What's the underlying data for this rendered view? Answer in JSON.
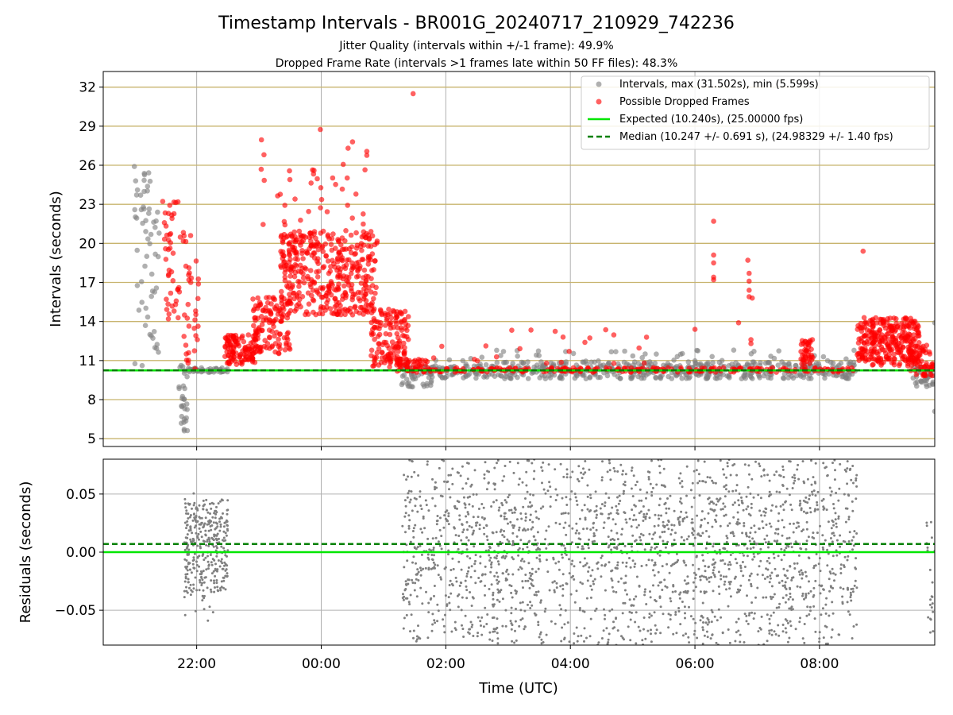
{
  "figure": {
    "title": "Timestamp Intervals - BR001G_20240717_210929_742236",
    "subtitle_jitter": "Jitter Quality (intervals within +/-1 frame): 49.9%",
    "subtitle_dropped": "Dropped Frame Rate (intervals >1 frames late within 50 FF files): 48.3%",
    "xlabel": "Time (UTC)"
  },
  "colors": {
    "intervals": "#808080",
    "dropped": "#ff0000",
    "expected": "#00e600",
    "median": "#008000",
    "hgrid": "#c8b46e",
    "vgrid": "#b0b0b0"
  },
  "chart_data": [
    {
      "type": "scatter",
      "panel": "intervals",
      "ylabel": "Intervals (seconds)",
      "xlim_hours": [
        20.5,
        33.85
      ],
      "ylim": [
        4.4,
        33.2
      ],
      "yticks": [
        5,
        8,
        11,
        14,
        17,
        20,
        23,
        26,
        29,
        32
      ],
      "xticks": [
        "22:00",
        "00:00",
        "02:00",
        "04:00",
        "06:00",
        "08:00"
      ],
      "xtick_hours": [
        22,
        24,
        26,
        28,
        30,
        32
      ],
      "grid": true,
      "legend_placement": "top-right",
      "legend": [
        "Intervals, max (31.502s), min (5.599s)",
        "Possible Dropped Frames",
        "Expected (10.240s), (25.00000 fps)",
        "Median (10.247 +/- 0.691 s), (24.98329 +/- 1.40 fps)"
      ],
      "expected_interval": 10.24,
      "median_interval": 10.247,
      "max_interval": 31.502,
      "min_interval": 5.599,
      "clusters": [
        {
          "series": "intervals",
          "x": [
            21.0,
            21.4
          ],
          "y": [
            10.5,
            26.0
          ],
          "n": 55
        },
        {
          "series": "intervals",
          "x": [
            21.7,
            21.85
          ],
          "y": [
            5.6,
            11.0
          ],
          "n": 25
        },
        {
          "series": "dropped",
          "x": [
            21.45,
            21.7
          ],
          "y": [
            14.0,
            23.5
          ],
          "n": 40
        },
        {
          "series": "dropped",
          "x": [
            21.7,
            22.05
          ],
          "y": [
            10.2,
            21.5
          ],
          "n": 40
        },
        {
          "series": "intervals",
          "x": [
            21.8,
            22.5
          ],
          "y": [
            10.1,
            10.45
          ],
          "n": 45
        },
        {
          "series": "dropped",
          "x": [
            22.45,
            23.0
          ],
          "y": [
            10.7,
            13.0
          ],
          "n": 120
        },
        {
          "series": "dropped",
          "x": [
            22.9,
            23.5
          ],
          "y": [
            11.5,
            16.0
          ],
          "n": 120
        },
        {
          "series": "dropped",
          "x": [
            23.35,
            24.9
          ],
          "y": [
            14.5,
            21.0
          ],
          "n": 420
        },
        {
          "series": "dropped",
          "x": [
            23.0,
            24.8
          ],
          "y": [
            21.0,
            28.9
          ],
          "n": 40
        },
        {
          "series": "dropped",
          "x": [
            24.8,
            25.4
          ],
          "y": [
            10.5,
            15.0
          ],
          "n": 140
        },
        {
          "series": "dropped",
          "x": [
            25.2,
            25.7
          ],
          "y": [
            10.1,
            11.2
          ],
          "n": 50
        },
        {
          "series": "intervals",
          "x": [
            25.2,
            25.8
          ],
          "y": [
            8.9,
            10.8
          ],
          "n": 45
        },
        {
          "series": "intervals",
          "x": [
            25.7,
            32.6
          ],
          "y": [
            9.6,
            10.9
          ],
          "n": 520
        },
        {
          "series": "dropped",
          "x": [
            25.7,
            32.6
          ],
          "y": [
            10.1,
            10.45
          ],
          "n": 230
        },
        {
          "series": "dropped",
          "x": [
            25.7,
            29.5
          ],
          "y": [
            10.7,
            13.5
          ],
          "n": 22
        },
        {
          "series": "intervals",
          "x": [
            25.8,
            32.6
          ],
          "y": [
            10.9,
            11.8
          ],
          "n": 45
        },
        {
          "series": "dropped",
          "x": [
            31.7,
            31.9
          ],
          "y": [
            10.3,
            12.6
          ],
          "n": 40
        },
        {
          "series": "dropped",
          "x": [
            32.6,
            33.6
          ],
          "y": [
            10.6,
            14.3
          ],
          "n": 300
        },
        {
          "series": "dropped",
          "x": [
            33.4,
            33.85
          ],
          "y": [
            9.8,
            12.2
          ],
          "n": 70
        },
        {
          "series": "intervals",
          "x": [
            33.5,
            33.85
          ],
          "y": [
            9.0,
            10.5
          ],
          "n": 40
        }
      ],
      "dropped_points": {
        "x": [
          25.475,
          30.3,
          30.3,
          30.3,
          30.3,
          30.3,
          30.0,
          30.85,
          30.87,
          30.87,
          30.87,
          30.87,
          30.9,
          30.9,
          30.7,
          30.92,
          32.7,
          31.0
        ],
        "y": [
          31.5,
          21.7,
          19.1,
          18.5,
          17.4,
          17.2,
          13.4,
          18.7,
          17.7,
          17.1,
          16.4,
          15.9,
          12.6,
          12.3,
          13.9,
          15.8,
          19.4,
          10.4
        ]
      },
      "interval_points": {
        "x": [
          21.0,
          21.02,
          21.05,
          21.1,
          21.8,
          21.8,
          21.81,
          33.85,
          33.85
        ],
        "y": [
          25.9,
          24.8,
          24.1,
          23.7,
          5.6,
          6.5,
          7.3,
          7.1,
          13.9
        ]
      }
    },
    {
      "type": "scatter",
      "panel": "residuals",
      "ylabel": "Residuals (seconds)",
      "xlim_hours": [
        20.5,
        33.85
      ],
      "ylim": [
        -0.08,
        0.08
      ],
      "yticks": [
        0.05,
        0.0,
        -0.05
      ],
      "ytick_labels": [
        "0.05",
        "0.00",
        "−0.05"
      ],
      "xticks": [
        "22:00",
        "00:00",
        "02:00",
        "04:00",
        "06:00",
        "08:00"
      ],
      "xtick_hours": [
        22,
        24,
        26,
        28,
        30,
        32
      ],
      "grid": true,
      "expected_residual": 0.0,
      "median_residual": 0.007,
      "clusters": [
        {
          "x": [
            21.8,
            22.5
          ],
          "y": [
            -0.035,
            0.045
          ],
          "n": 330
        },
        {
          "x": [
            21.8,
            22.5
          ],
          "y": [
            -0.065,
            0.055
          ],
          "n": 25
        },
        {
          "x": [
            25.3,
            32.6
          ],
          "y": [
            -0.08,
            0.08
          ],
          "n": 1550
        },
        {
          "x": [
            25.3,
            32.6
          ],
          "y": [
            -0.04,
            0.05
          ],
          "n": 500
        },
        {
          "x": [
            33.7,
            33.85
          ],
          "y": [
            -0.075,
            0.035
          ],
          "n": 22
        }
      ]
    }
  ]
}
